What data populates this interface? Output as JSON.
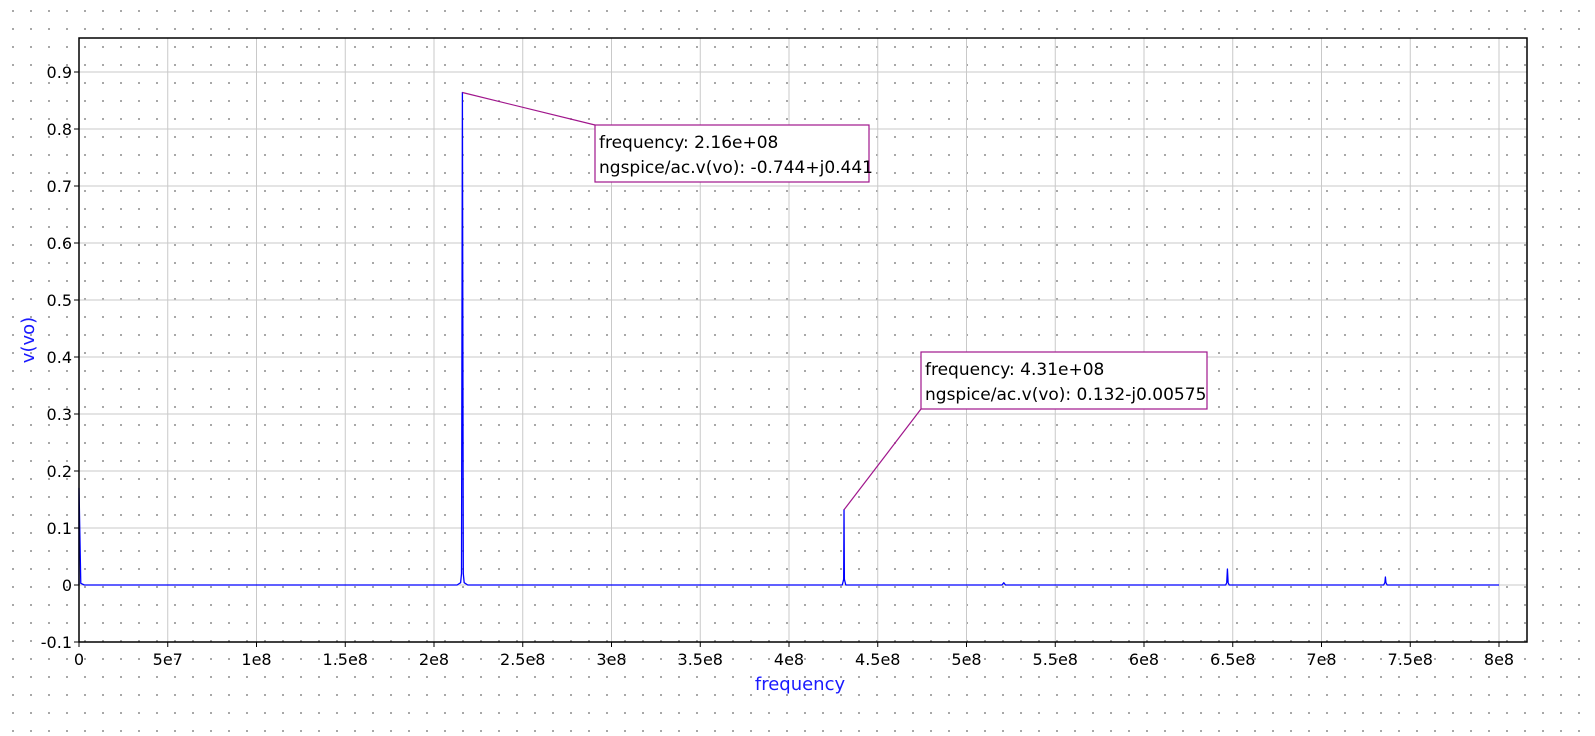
{
  "chart_data": {
    "type": "line",
    "xlabel": "frequency",
    "ylabel": "v(vo)",
    "xlim": [
      0,
      800000000
    ],
    "ylim": [
      -0.1,
      0.95
    ],
    "grid": true,
    "x_ticks": [
      {
        "value": 0,
        "label": "0"
      },
      {
        "value": 50000000,
        "label": "5e7"
      },
      {
        "value": 100000000,
        "label": "1e8"
      },
      {
        "value": 150000000,
        "label": "1.5e8"
      },
      {
        "value": 200000000,
        "label": "2e8"
      },
      {
        "value": 250000000,
        "label": "2.5e8"
      },
      {
        "value": 300000000,
        "label": "3e8"
      },
      {
        "value": 350000000,
        "label": "3.5e8"
      },
      {
        "value": 400000000,
        "label": "4e8"
      },
      {
        "value": 450000000,
        "label": "4.5e8"
      },
      {
        "value": 500000000,
        "label": "5e8"
      },
      {
        "value": 550000000,
        "label": "5.5e8"
      },
      {
        "value": 600000000,
        "label": "6e8"
      },
      {
        "value": 650000000,
        "label": "6.5e8"
      },
      {
        "value": 700000000,
        "label": "7e8"
      },
      {
        "value": 750000000,
        "label": "7.5e8"
      },
      {
        "value": 800000000,
        "label": "8e8"
      }
    ],
    "y_ticks": [
      {
        "value": -0.1,
        "label": "-0.1"
      },
      {
        "value": 0,
        "label": "0"
      },
      {
        "value": 0.1,
        "label": "0.1"
      },
      {
        "value": 0.2,
        "label": "0.2"
      },
      {
        "value": 0.3,
        "label": "0.3"
      },
      {
        "value": 0.4,
        "label": "0.4"
      },
      {
        "value": 0.5,
        "label": "0.5"
      },
      {
        "value": 0.6,
        "label": "0.6"
      },
      {
        "value": 0.7,
        "label": "0.7"
      },
      {
        "value": 0.8,
        "label": "0.8"
      },
      {
        "value": 0.9,
        "label": "0.9"
      }
    ],
    "series": [
      {
        "color": "#0000ff",
        "x": [
          0,
          0,
          1000000,
          3000000,
          213000000,
          215000000,
          215500000,
          216000000,
          216500000,
          217000000,
          219000000,
          430000000,
          430800000,
          431000000,
          431200000,
          432000000,
          520000000,
          521000000,
          522000000,
          646000000,
          646600000,
          647000000,
          647400000,
          648000000,
          735000000,
          735700000,
          736000000,
          736300000,
          737000000,
          800000000
        ],
        "y": [
          0,
          0.17,
          0.003,
          0,
          0,
          0.004,
          0.02,
          0.864,
          0.02,
          0.004,
          0,
          0,
          0.01,
          0.132,
          0.01,
          0,
          0,
          0.004,
          0,
          0,
          0.004,
          0.028,
          0.004,
          0,
          0,
          0.004,
          0.014,
          0.004,
          0,
          0
        ]
      }
    ],
    "annotations": [
      {
        "x": 216000000,
        "y": 0.864,
        "lines": [
          "frequency: 2.16e+08",
          "ngspice/ac.v(vo): -0.744+j0.441"
        ],
        "color": "#a0168c"
      },
      {
        "x": 431000000,
        "y": 0.132,
        "lines": [
          "frequency: 4.31e+08",
          "ngspice/ac.v(vo): 0.132-j0.00575"
        ],
        "color": "#a0168c"
      }
    ]
  },
  "colors": {
    "axis_title": "#1a1aff",
    "grid": "#c9c9c9",
    "frame": "#000000"
  }
}
